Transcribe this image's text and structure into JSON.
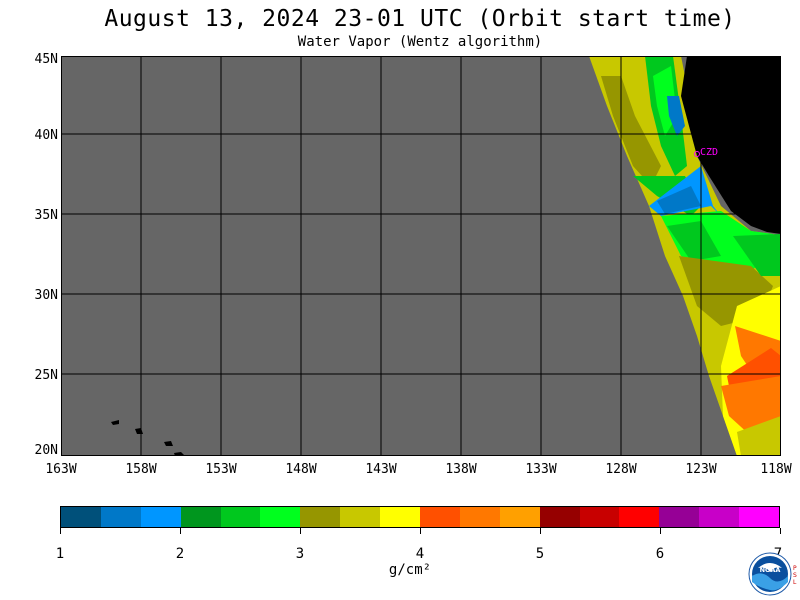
{
  "header": {
    "title": "August 13, 2024  23-01 UTC  (Orbit start time)",
    "subtitle": "Water Vapor (Wentz algorithm)"
  },
  "map": {
    "ocean_no_data_color": "#666666",
    "land_color": "#000000",
    "grid_color": "#000000",
    "lat_labels": [
      "45N",
      "40N",
      "35N",
      "30N",
      "25N",
      "20N"
    ],
    "lon_labels": [
      "163W",
      "158W",
      "153W",
      "148W",
      "143W",
      "138W",
      "133W",
      "128W",
      "123W",
      "118W"
    ],
    "station": {
      "label": "CZD",
      "color": "#ff00ff"
    }
  },
  "colorbar": {
    "colors": [
      "#00507a",
      "#0078c8",
      "#0096ff",
      "#00961e",
      "#00c81e",
      "#00ff1e",
      "#969600",
      "#c8c800",
      "#ffff00",
      "#ff5000",
      "#ff7800",
      "#ffa000",
      "#960000",
      "#c80000",
      "#ff0000",
      "#960096",
      "#c800c8",
      "#ff00ff"
    ],
    "tick_labels": [
      "1",
      "2",
      "3",
      "4",
      "5",
      "6",
      "7"
    ],
    "units": "g/cm²",
    "range": [
      1,
      7
    ]
  },
  "logo": {
    "text": "NOAA",
    "side_text": "PSL"
  }
}
